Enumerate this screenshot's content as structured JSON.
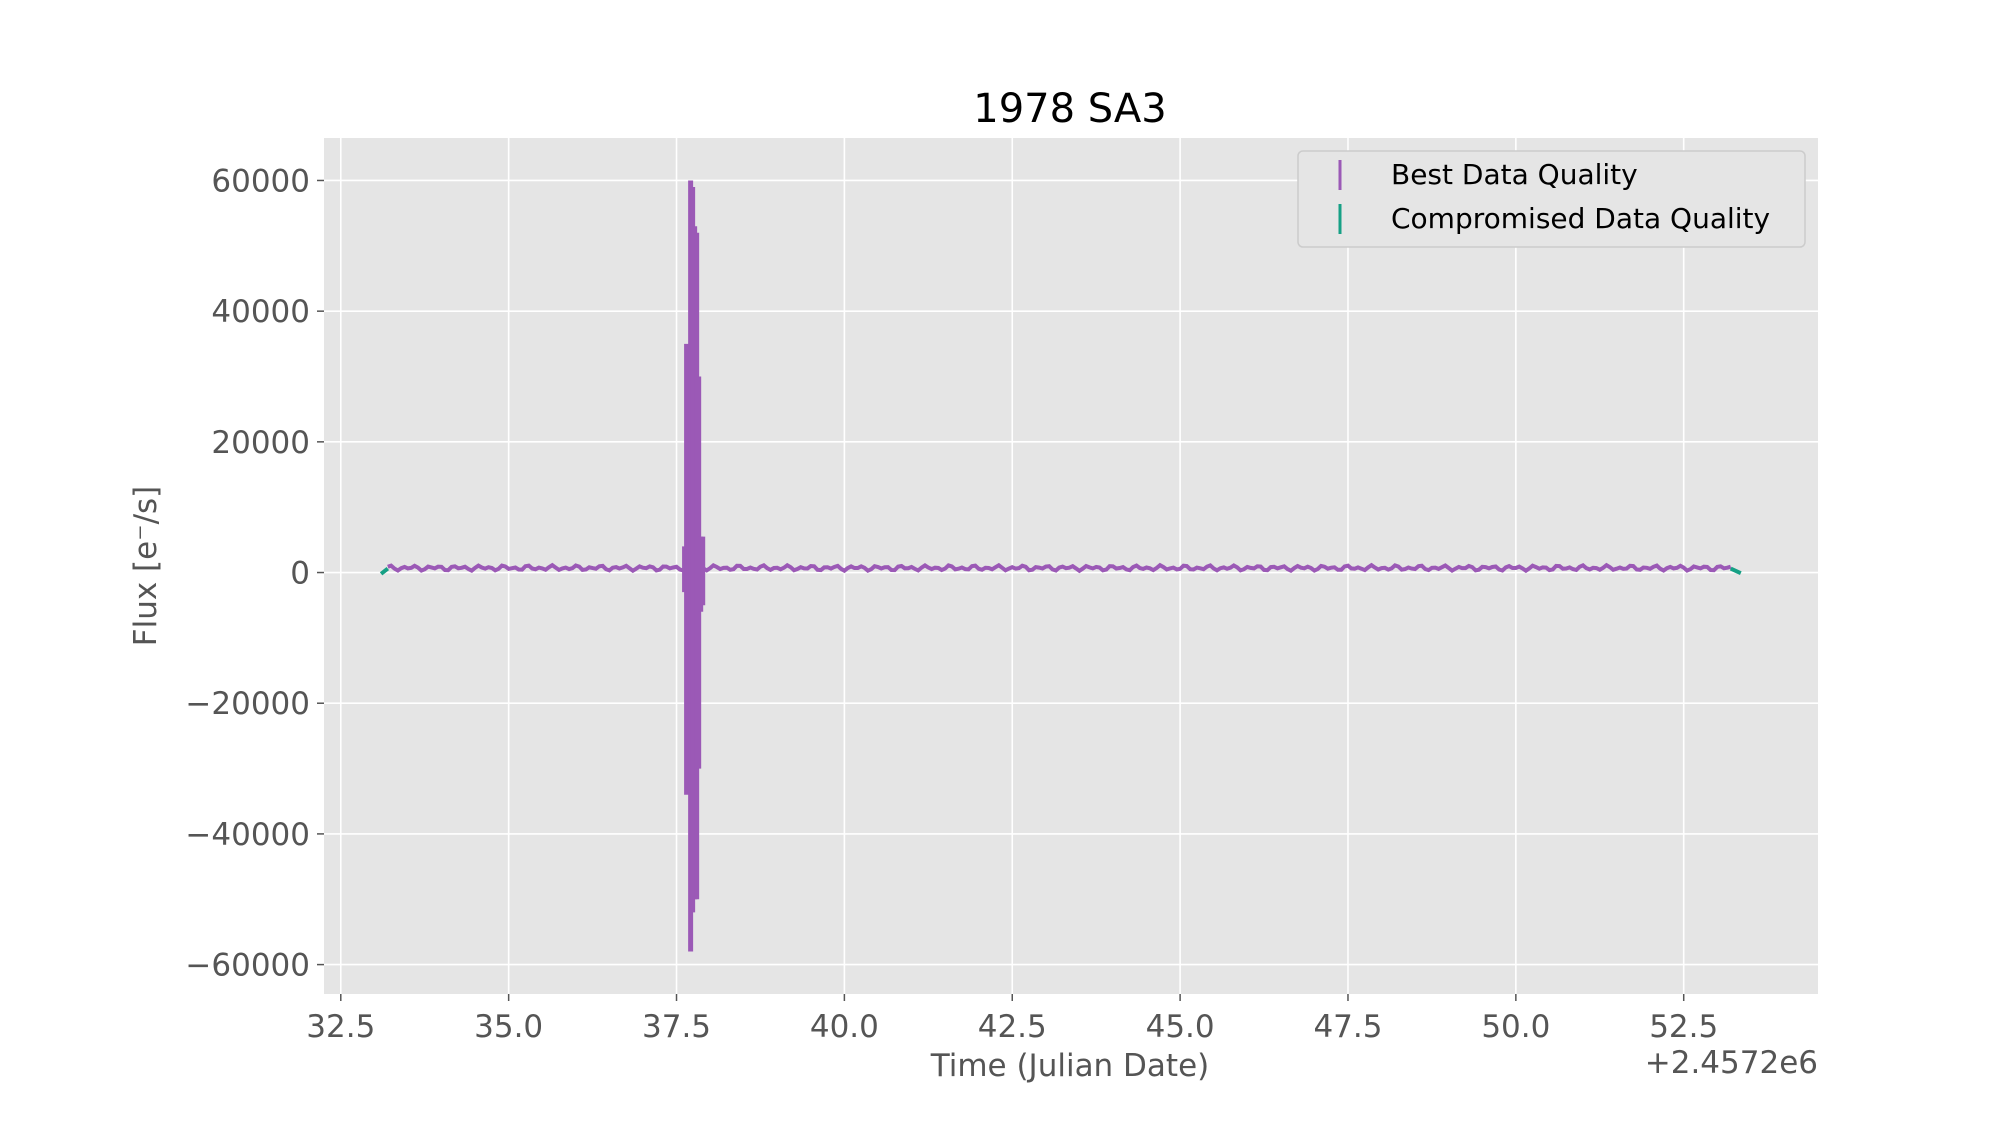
{
  "chart_data": {
    "type": "scatter",
    "title": "1978 SA3",
    "xlabel": "Time (Julian Date)",
    "ylabel": "Flux [e$^-$/s]",
    "ylabel_display": "Flux [e⁻/s]",
    "x_offset_label": "+2.4572e6",
    "x_offset": 2457200,
    "xlim": [
      32.25,
      54.5
    ],
    "ylim": [
      -64500,
      66500
    ],
    "xticks": [
      32.5,
      35.0,
      37.5,
      40.0,
      42.5,
      45.0,
      47.5,
      50.0,
      52.5
    ],
    "xtick_labels": [
      "32.5",
      "35.0",
      "37.5",
      "40.0",
      "42.5",
      "45.0",
      "47.5",
      "50.0",
      "52.5"
    ],
    "yticks": [
      -60000,
      -40000,
      -20000,
      0,
      20000,
      40000,
      60000
    ],
    "ytick_labels": [
      "−60000",
      "−40000",
      "−20000",
      "0",
      "20000",
      "40000",
      "60000"
    ],
    "grid": true,
    "legend_position": "top-right",
    "background_color": "#e5e5e5",
    "series": [
      {
        "name": "Best Data Quality",
        "color": "#9b59b6",
        "baseline": {
          "x_start": 33.2,
          "x_end": 53.2,
          "y": 700
        },
        "spike": {
          "x": 37.75,
          "y_min": -58000,
          "y_max": 60000
        }
      },
      {
        "name": "Compromised Data Quality",
        "color": "#16a085",
        "segments": [
          {
            "x": [
              33.1,
              33.2
            ],
            "y": [
              -200,
              600
            ]
          },
          {
            "x": [
              53.2,
              53.35
            ],
            "y": [
              600,
              -100
            ]
          }
        ]
      }
    ]
  }
}
